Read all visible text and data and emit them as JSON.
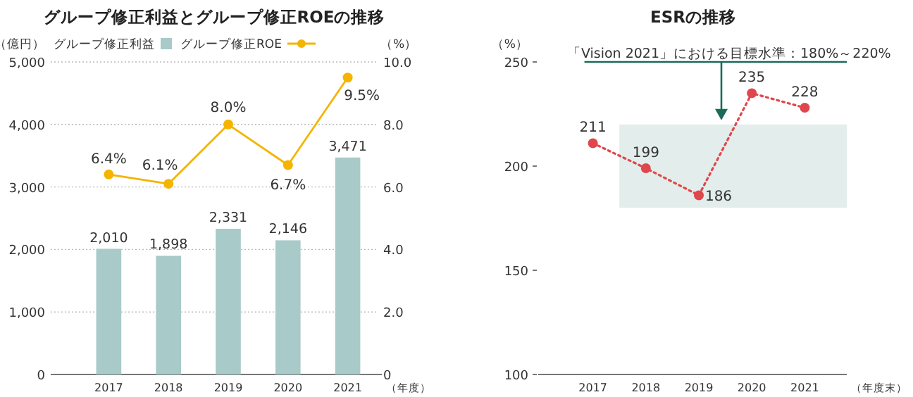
{
  "chart_data": [
    {
      "type": "bar",
      "title": "グループ修正利益とグループ修正ROEの推移",
      "categories": [
        "2017",
        "2018",
        "2019",
        "2020",
        "2021"
      ],
      "xlabel": "（年度）",
      "ylabel": "（億円）",
      "y2label": "（%）",
      "series": [
        {
          "name": "グループ修正利益",
          "type": "bar",
          "color": "#a8cac8",
          "values": [
            2010,
            1898,
            2331,
            2146,
            3471
          ],
          "value_labels": [
            "2,010",
            "1,898",
            "2,331",
            "2,146",
            "3,471"
          ]
        },
        {
          "name": "グループ修正ROE",
          "type": "line",
          "axis": "y2",
          "color": "#f5b400",
          "values": [
            6.4,
            6.1,
            8.0,
            6.7,
            9.5
          ],
          "value_labels": [
            "6.4%",
            "6.1%",
            "8.0%",
            "6.7%",
            "9.5%"
          ]
        }
      ],
      "ylim": [
        0,
        5000
      ],
      "yticks": [
        0,
        {
          "value": 1000,
          "label": "1,000"
        },
        {
          "value": 2000,
          "label": "2,000"
        },
        {
          "value": 3000,
          "label": "3,000"
        },
        {
          "value": 4000,
          "label": "4,000"
        },
        {
          "value": 5000,
          "label": "5,000"
        }
      ],
      "y2lim": [
        0,
        10
      ],
      "y2ticks": [
        0,
        {
          "value": 2,
          "label": "2.0"
        },
        {
          "value": 4,
          "label": "4.0"
        },
        {
          "value": 6,
          "label": "6.0"
        },
        {
          "value": 8,
          "label": "8.0"
        },
        {
          "value": 10,
          "label": "10.0"
        }
      ],
      "grid": "y",
      "legend": "top",
      "marker": "circle"
    },
    {
      "type": "line",
      "title": "ESRの推移",
      "categories": [
        "2017",
        "2018",
        "2019",
        "2020",
        "2021"
      ],
      "xlabel": "（年度末）",
      "ylabel": "（%）",
      "series": [
        {
          "color": "#e0474c",
          "values": [
            211,
            199,
            186,
            235,
            228
          ]
        }
      ],
      "ylim": [
        100,
        250
      ],
      "yticks": [
        100,
        150,
        200,
        250
      ],
      "data_labels": true,
      "line_style": "dotted",
      "marker": "circle",
      "bands": [
        {
          "axis": "y",
          "from": 180,
          "to": 220,
          "color": "#e3edeb"
        }
      ],
      "annotations": [
        "「Vision 2021」における目標水準：180%～220%"
      ]
    }
  ]
}
